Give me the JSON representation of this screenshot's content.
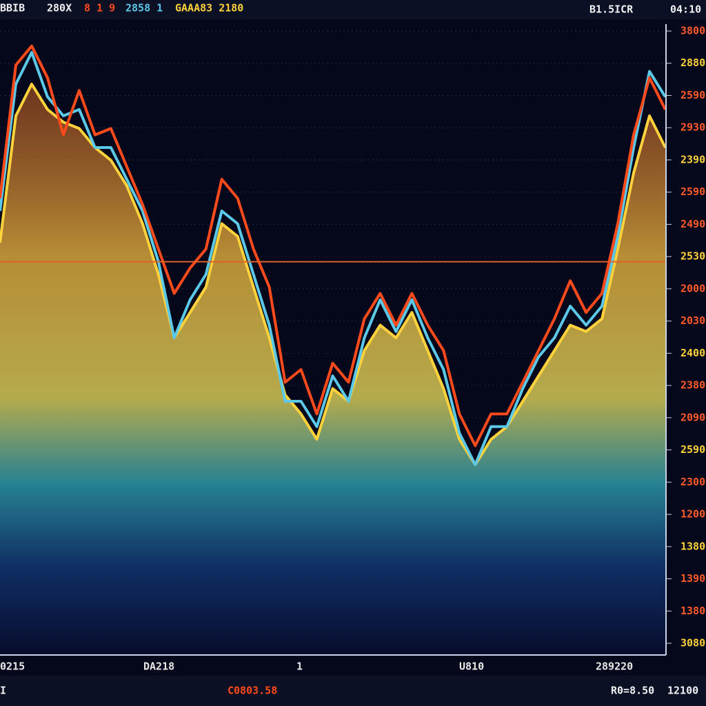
{
  "header": {
    "left": [
      "BBIB",
      "280X",
      "8 1 9",
      "2858 1",
      "GAAA83 2180"
    ],
    "right": [
      "B1.5ICR",
      "04:10"
    ]
  },
  "axis_labels": [
    "3800",
    "2880",
    "2590",
    "2930",
    "2390",
    "2590",
    "2490",
    "2530",
    "2000",
    "2030",
    "2400",
    "2380",
    "2090",
    "2590",
    "2300",
    "1200",
    "1380",
    "1390",
    "1380",
    "3080"
  ],
  "x_labels": [
    "0215",
    "DA218",
    "1",
    "U810",
    "289220"
  ],
  "footer": [
    "I",
    "C0803.58",
    "R0=8.50",
    "12100"
  ],
  "chart_data": {
    "type": "line",
    "ylim": [
      0,
      100
    ],
    "reference_line": 62,
    "reference_color": "#e0622a",
    "series": [
      {
        "color": "#ffd23c",
        "values": [
          65,
          85,
          90,
          86,
          84,
          83,
          80,
          78,
          74,
          68,
          60,
          50,
          54,
          58,
          68,
          66,
          58,
          50,
          41,
          38,
          34,
          42,
          40,
          48,
          52,
          50,
          54,
          48,
          42,
          34,
          30,
          34,
          36,
          40,
          44,
          48,
          52,
          51,
          53,
          64,
          76,
          85,
          80
        ]
      },
      {
        "color": "#5cc8e8",
        "values": [
          70,
          90,
          95,
          88,
          85,
          86,
          80,
          80,
          75,
          70,
          62,
          50,
          56,
          60,
          70,
          68,
          60,
          52,
          40,
          40,
          36,
          44,
          40,
          50,
          56,
          51,
          56,
          50,
          45,
          35,
          30,
          36,
          36,
          42,
          47,
          50,
          55,
          52,
          55,
          66,
          80,
          92,
          88
        ]
      },
      {
        "color": "#ff4a1c",
        "values": [
          72,
          93,
          96,
          91,
          82,
          89,
          82,
          83,
          77,
          71,
          64,
          57,
          61,
          64,
          75,
          72,
          64,
          58,
          43,
          45,
          38,
          46,
          43,
          53,
          57,
          52,
          57,
          52,
          48,
          38,
          33,
          38,
          38,
          43,
          48,
          53,
          59,
          54,
          57,
          68,
          82,
          91,
          86
        ]
      }
    ]
  }
}
